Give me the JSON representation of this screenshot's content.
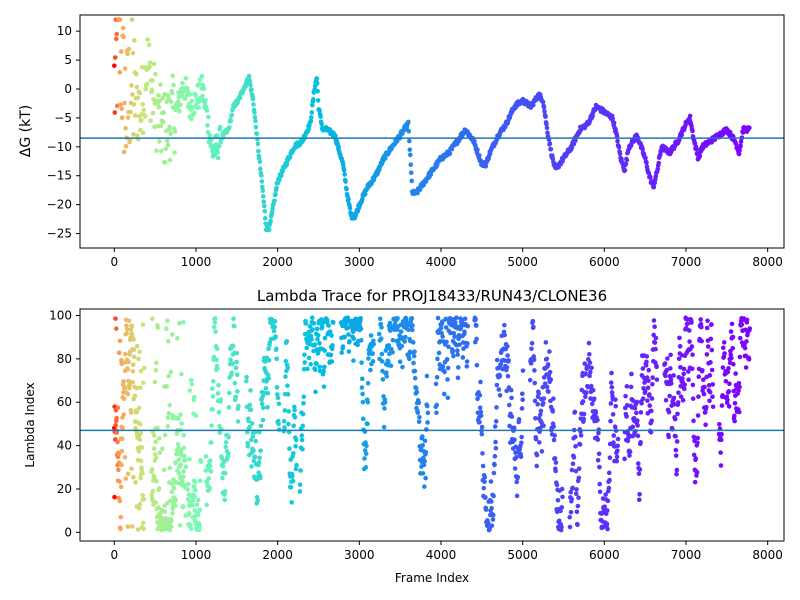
{
  "chart_data": [
    {
      "type": "scatter",
      "title": "",
      "xlabel": "",
      "ylabel": "ΔG (kT)",
      "xlim": [
        -420,
        8200
      ],
      "ylim": [
        -27.5,
        12.8
      ],
      "x_ticks": [
        0,
        1000,
        2000,
        3000,
        4000,
        5000,
        6000,
        7000,
        8000
      ],
      "y_ticks": [
        10,
        5,
        0,
        -5,
        -10,
        -15,
        -20,
        -25
      ],
      "color_map": "rainbow (red at frame 0 to purple at frame 7800)",
      "horizontal_line": {
        "y": -8.5,
        "color": "#1f77b4"
      },
      "series_trace": {
        "x": [
          0,
          30,
          60,
          100,
          150,
          200,
          260,
          330,
          400,
          470,
          550,
          620,
          700,
          780,
          850,
          920,
          1000,
          1080,
          1150,
          1200,
          1260,
          1330,
          1400,
          1460,
          1520,
          1580,
          1650,
          1700,
          1760,
          1820,
          1860,
          1900,
          1950,
          2000,
          2100,
          2200,
          2300,
          2400,
          2450,
          2480,
          2500,
          2550,
          2600,
          2700,
          2800,
          2850,
          2900,
          2950,
          3000,
          3100,
          3200,
          3300,
          3400,
          3500,
          3550,
          3600,
          3650,
          3700,
          3800,
          3900,
          4000,
          4100,
          4200,
          4300,
          4400,
          4500,
          4550,
          4600,
          4700,
          4800,
          4900,
          5000,
          5100,
          5200,
          5250,
          5300,
          5350,
          5400,
          5500,
          5600,
          5700,
          5800,
          5900,
          6000,
          6100,
          6150,
          6200,
          6250,
          6300,
          6400,
          6500,
          6550,
          6600,
          6650,
          6700,
          6800,
          6900,
          7000,
          7050,
          7100,
          7150,
          7200,
          7300,
          7400,
          7500,
          7600,
          7650,
          7700,
          7780
        ],
        "y": [
          0,
          5,
          8,
          2,
          -5,
          1,
          -2,
          -4,
          5,
          -1,
          -6,
          -7,
          -5,
          -3,
          1,
          -3,
          -2,
          0,
          -6,
          -11,
          -10,
          -8,
          -7,
          -3,
          -2,
          0,
          2,
          -2,
          -10,
          -18,
          -24,
          -24,
          -20,
          -16,
          -13,
          -10,
          -9,
          -6,
          0,
          2,
          -3,
          -7,
          -7,
          -8,
          -13,
          -18,
          -22,
          -22,
          -20,
          -17,
          -15,
          -12,
          -10,
          -8,
          -7,
          -6,
          -18,
          -18,
          -16,
          -14,
          -12,
          -11,
          -9,
          -7,
          -9,
          -13,
          -13,
          -11,
          -8,
          -6,
          -3,
          -2,
          -3,
          -1,
          -2,
          -7,
          -11,
          -14,
          -12,
          -10,
          -7,
          -6,
          -3,
          -4,
          -5,
          -8,
          -12,
          -14,
          -10,
          -8,
          -12,
          -15,
          -17,
          -14,
          -10,
          -11,
          -9,
          -6,
          -5,
          -9,
          -12,
          -10,
          -9,
          -8,
          -7,
          -9,
          -11,
          -7,
          -7
        ]
      }
    },
    {
      "type": "scatter",
      "title": "Lambda Trace for PROJ18433/RUN43/CLONE36",
      "xlabel": "Frame Index",
      "ylabel": "Lambda Index",
      "xlim": [
        -420,
        8200
      ],
      "ylim": [
        -4,
        103
      ],
      "x_ticks": [
        0,
        1000,
        2000,
        3000,
        4000,
        5000,
        6000,
        7000,
        8000
      ],
      "y_ticks": [
        0,
        20,
        40,
        60,
        80,
        100
      ],
      "color_map": "rainbow (red at frame 0 to purple at frame 7800)",
      "horizontal_line": {
        "y": 47,
        "color": "#1f77b4"
      },
      "x_range": [
        0,
        7800
      ],
      "y_range": [
        0,
        99
      ]
    }
  ]
}
